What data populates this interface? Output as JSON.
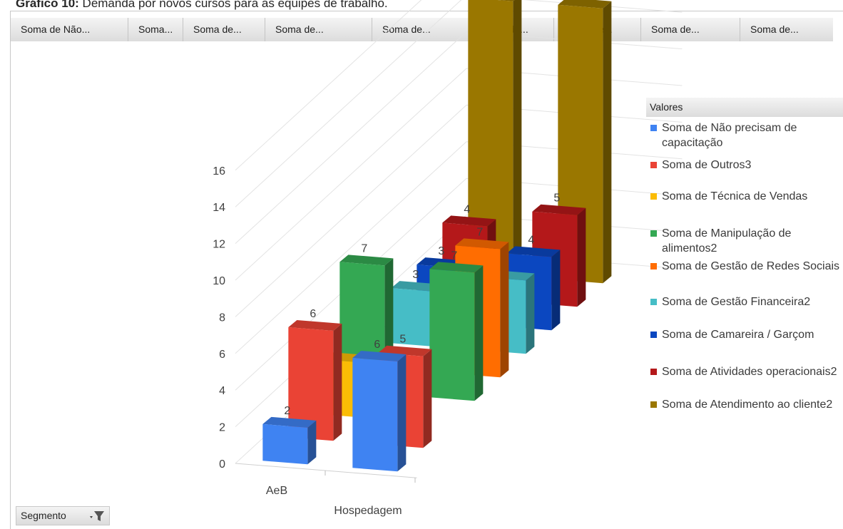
{
  "caption": {
    "bold": "Gráfico 10:",
    "text": " Demanda por novos cursos para as equipes de trabalho."
  },
  "field_buttons": [
    "Soma de Não...",
    "Soma...",
    "Soma de...",
    "Soma de...",
    "Soma de...",
    "Soma de...",
    "Soma de...",
    "Soma de...",
    "Soma de..."
  ],
  "segment_button": {
    "label": "Segmento",
    "icon": "filter-dropdown-icon"
  },
  "legend": {
    "header": "Valores"
  },
  "chart_data": {
    "type": "bar",
    "view": "3d-clustered-column",
    "categories": [
      "AeB",
      "Hospedagem"
    ],
    "ylim": [
      0,
      16
    ],
    "yticks": [
      0,
      2,
      4,
      6,
      8,
      10,
      12,
      14,
      16
    ],
    "grid": true,
    "legend_position": "right",
    "series": [
      {
        "name": "Soma de Não precisam de capacitação",
        "color": "#3f83f2",
        "values": [
          2,
          6
        ]
      },
      {
        "name": "Soma de Outros3",
        "color": "#ea4335",
        "values": [
          6,
          5
        ]
      },
      {
        "name": "Soma de Técnica de Vendas",
        "color": "#fbbc05",
        "values": [
          3,
          null
        ]
      },
      {
        "name": "Soma de Manipulação de alimentos2",
        "color": "#34a853",
        "values": [
          7,
          7
        ]
      },
      {
        "name": "Soma de Gestão de Redes Sociais",
        "color": "#ff6d01",
        "values": [
          null,
          7
        ]
      },
      {
        "name": "Soma de Gestão Financeira2",
        "color": "#46bdc6",
        "values": [
          3,
          4
        ]
      },
      {
        "name": "Soma de Camareira / Garçom",
        "color": "#0b47c0",
        "values": [
          3,
          4
        ]
      },
      {
        "name": "Soma de Atividades operacionais2",
        "color": "#b4181a",
        "values": [
          4,
          5
        ]
      },
      {
        "name": "Soma de Atendimento ao cliente2",
        "color": "#9a7700",
        "values": [
          15,
          15
        ]
      }
    ]
  }
}
